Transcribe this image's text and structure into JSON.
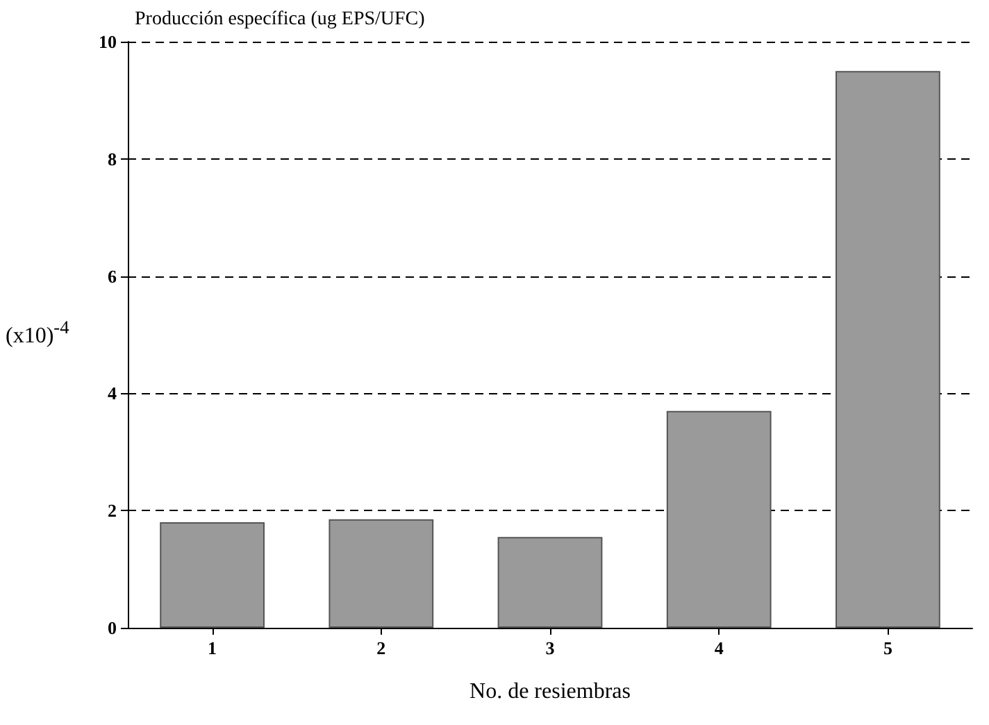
{
  "chart_data": {
    "type": "bar",
    "title": "Producción específica (ug EPS/UFC)",
    "xlabel": "No. de resiembras",
    "ylabel": "(x10)$^{-4}$",
    "categories": [
      "1",
      "2",
      "3",
      "4",
      "5"
    ],
    "values": [
      1.8,
      1.85,
      1.55,
      3.7,
      9.5
    ],
    "color": "#9a9a9a",
    "ylim": [
      0,
      10
    ],
    "yticks": [
      0,
      2,
      4,
      6,
      8,
      10
    ],
    "grid": "y"
  }
}
